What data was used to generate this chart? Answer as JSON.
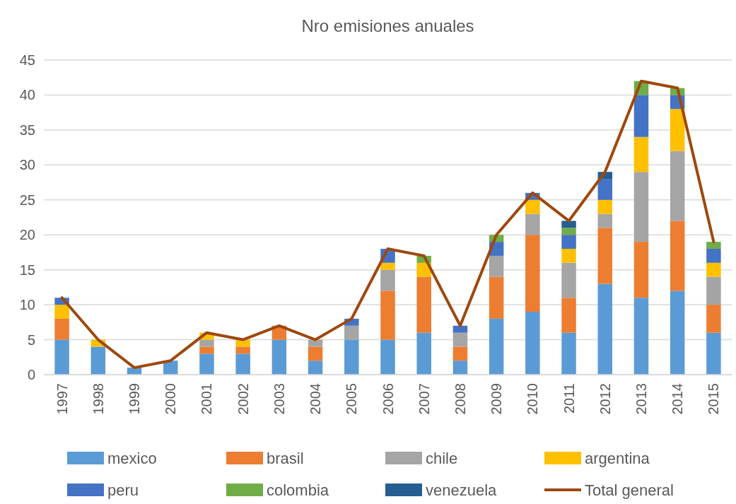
{
  "chart_data": {
    "type": "bar",
    "title": "Nro emisiones anuales",
    "stacked": true,
    "grid": "y",
    "legend": "bottom",
    "categories": [
      "1997",
      "1998",
      "1999",
      "2000",
      "2001",
      "2002",
      "2003",
      "2004",
      "2005",
      "2006",
      "2007",
      "2008",
      "2009",
      "2010",
      "2011",
      "2012",
      "2013",
      "2014",
      "2015"
    ],
    "ylim": [
      0,
      45
    ],
    "yticks": [
      0,
      5,
      10,
      15,
      20,
      25,
      30,
      35,
      40,
      45
    ],
    "series": [
      {
        "name": "mexico",
        "color": "#5b9bd5",
        "values": [
          5,
          4,
          1,
          2,
          3,
          3,
          5,
          2,
          5,
          5,
          6,
          2,
          8,
          9,
          6,
          13,
          11,
          12,
          6
        ]
      },
      {
        "name": "brasil",
        "color": "#ed7d31",
        "values": [
          3,
          0,
          0,
          0,
          1,
          1,
          2,
          2,
          0,
          7,
          8,
          2,
          6,
          11,
          5,
          8,
          8,
          10,
          4
        ]
      },
      {
        "name": "chile",
        "color": "#a5a5a5",
        "values": [
          0,
          0,
          0,
          0,
          1,
          0,
          0,
          1,
          2,
          3,
          0,
          2,
          3,
          3,
          5,
          2,
          10,
          10,
          4
        ]
      },
      {
        "name": "argentina",
        "color": "#ffc000",
        "values": [
          2,
          1,
          0,
          0,
          1,
          1,
          0,
          0,
          0,
          1,
          2,
          0,
          0,
          2,
          2,
          2,
          5,
          6,
          2
        ]
      },
      {
        "name": "peru",
        "color": "#4472c4",
        "values": [
          1,
          0,
          0,
          0,
          0,
          0,
          0,
          0,
          1,
          2,
          0,
          1,
          2,
          1,
          2,
          3,
          6,
          2,
          2
        ]
      },
      {
        "name": "colombia",
        "color": "#70ad47",
        "values": [
          0,
          0,
          0,
          0,
          0,
          0,
          0,
          0,
          0,
          0,
          1,
          0,
          1,
          0,
          1,
          0,
          2,
          1,
          1
        ]
      },
      {
        "name": "venezuela",
        "color": "#255e91",
        "values": [
          0,
          0,
          0,
          0,
          0,
          0,
          0,
          0,
          0,
          0,
          0,
          0,
          0,
          0,
          1,
          1,
          0,
          0,
          0
        ]
      },
      {
        "name": "Total general",
        "type": "line",
        "color": "#9e480e",
        "values": [
          11,
          5,
          1,
          2,
          6,
          5,
          7,
          5,
          8,
          18,
          17,
          7,
          20,
          26,
          22,
          29,
          42,
          41,
          19
        ]
      }
    ]
  }
}
